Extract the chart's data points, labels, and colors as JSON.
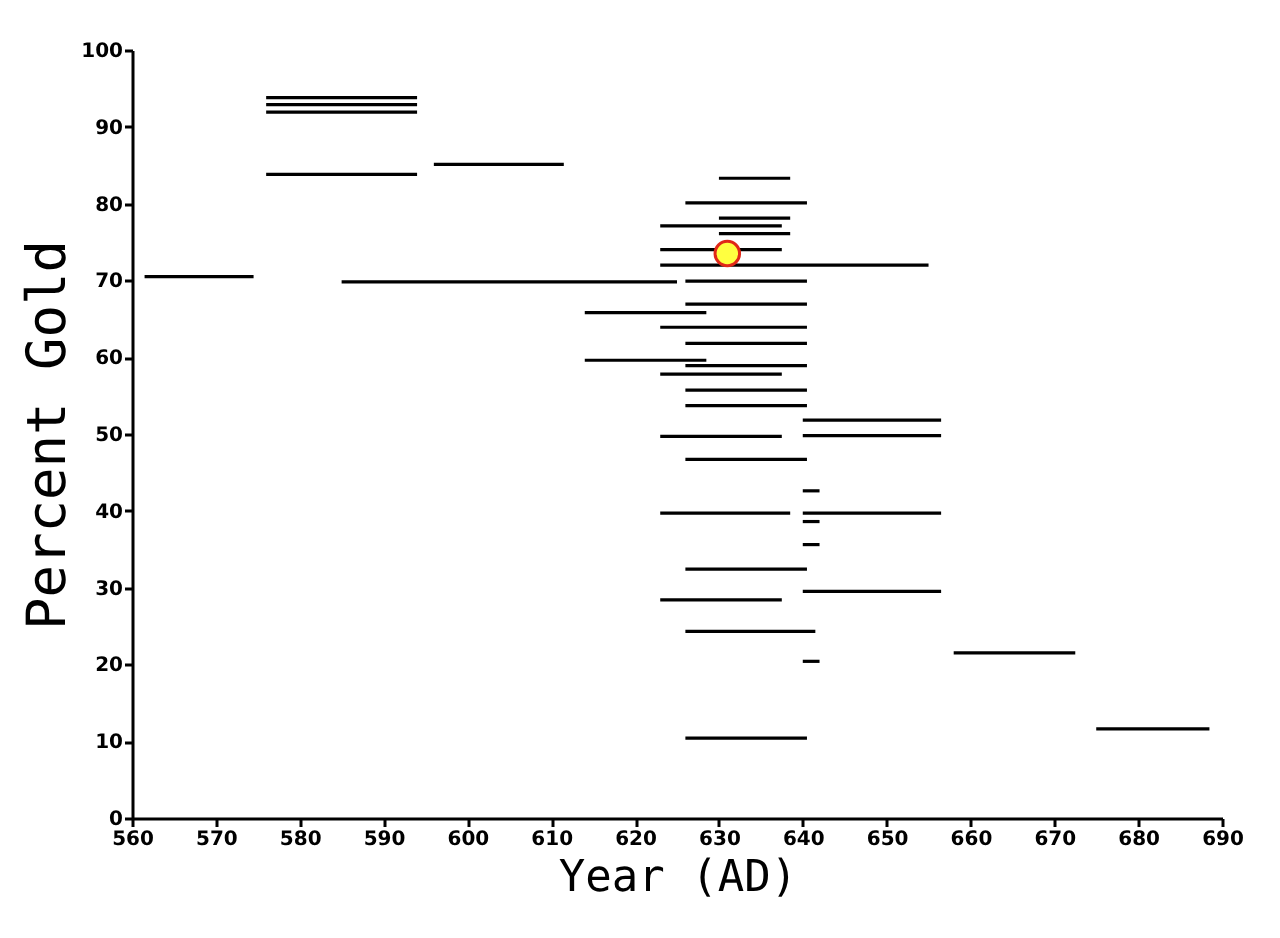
{
  "chart_data": {
    "type": "line",
    "xlabel": "Year (AD)",
    "ylabel": "Percent Gold",
    "xlim": [
      560,
      690
    ],
    "xticks": [
      560,
      570,
      580,
      590,
      600,
      610,
      620,
      630,
      640,
      650,
      660,
      670,
      680,
      690
    ],
    "ylim": [
      0,
      100
    ],
    "yticks": [
      0,
      10,
      20,
      30,
      40,
      50,
      60,
      70,
      80,
      90,
      100
    ],
    "grid": false,
    "series": [
      {
        "x": [
          561.5,
          574.5
        ],
        "values": [
          70.5,
          70.5
        ],
        "color": "#000000"
      },
      {
        "x": [
          576,
          594
        ],
        "values": [
          93.8,
          93.8
        ],
        "color": "#000000"
      },
      {
        "x": [
          576,
          594
        ],
        "values": [
          92.9,
          92.9
        ],
        "color": "#000000"
      },
      {
        "x": [
          576,
          594
        ],
        "values": [
          91.9,
          91.9
        ],
        "color": "#000000"
      },
      {
        "x": [
          576,
          594
        ],
        "values": [
          83.8,
          83.8
        ],
        "color": "#000000"
      },
      {
        "x": [
          596,
          611.5
        ],
        "values": [
          85.1,
          85.1
        ],
        "color": "#000000"
      },
      {
        "x": [
          585,
          625
        ],
        "values": [
          69.8,
          69.8
        ],
        "color": "#000000"
      },
      {
        "x": [
          614,
          628.5
        ],
        "values": [
          65.8,
          65.8
        ],
        "color": "#000000"
      },
      {
        "x": [
          614,
          628.5
        ],
        "values": [
          59.6,
          59.6
        ],
        "color": "#000000"
      },
      {
        "x": [
          630,
          638.5
        ],
        "values": [
          83.3,
          83.3
        ],
        "color": "#000000"
      },
      {
        "x": [
          626,
          640.5
        ],
        "values": [
          80.1,
          80.1
        ],
        "color": "#000000"
      },
      {
        "x": [
          630,
          638.5
        ],
        "values": [
          78.1,
          78.1
        ],
        "color": "#000000"
      },
      {
        "x": [
          623,
          637.5
        ],
        "values": [
          77.1,
          77.1
        ],
        "color": "#000000"
      },
      {
        "x": [
          630,
          638.5
        ],
        "values": [
          76.1,
          76.1
        ],
        "color": "#000000"
      },
      {
        "x": [
          623,
          637.5
        ],
        "values": [
          74.0,
          74.0
        ],
        "color": "#000000"
      },
      {
        "x": [
          623,
          655
        ],
        "values": [
          72.0,
          72.0
        ],
        "color": "#000000"
      },
      {
        "x": [
          626,
          640.5
        ],
        "values": [
          69.9,
          69.9
        ],
        "color": "#000000"
      },
      {
        "x": [
          626,
          640.5
        ],
        "values": [
          66.9,
          66.9
        ],
        "color": "#000000"
      },
      {
        "x": [
          623,
          640.5
        ],
        "values": [
          63.9,
          63.9
        ],
        "color": "#000000"
      },
      {
        "x": [
          626,
          640.5
        ],
        "values": [
          61.8,
          61.8
        ],
        "color": "#000000"
      },
      {
        "x": [
          626,
          640.5
        ],
        "values": [
          58.9,
          58.9
        ],
        "color": "#000000"
      },
      {
        "x": [
          623,
          637.5
        ],
        "values": [
          57.8,
          57.8
        ],
        "color": "#000000"
      },
      {
        "x": [
          626,
          640.5
        ],
        "values": [
          55.7,
          55.7
        ],
        "color": "#000000"
      },
      {
        "x": [
          626,
          640.5
        ],
        "values": [
          53.7,
          53.7
        ],
        "color": "#000000"
      },
      {
        "x": [
          640,
          656.5
        ],
        "values": [
          51.8,
          51.8
        ],
        "color": "#000000"
      },
      {
        "x": [
          623,
          637.5
        ],
        "values": [
          49.7,
          49.7
        ],
        "color": "#000000"
      },
      {
        "x": [
          640,
          656.5
        ],
        "values": [
          49.8,
          49.8
        ],
        "color": "#000000"
      },
      {
        "x": [
          626,
          640.5
        ],
        "values": [
          46.7,
          46.7
        ],
        "color": "#000000"
      },
      {
        "x": [
          640,
          642
        ],
        "values": [
          42.6,
          42.6
        ],
        "color": "#000000"
      },
      {
        "x": [
          623,
          638.5
        ],
        "values": [
          39.7,
          39.7
        ],
        "color": "#000000"
      },
      {
        "x": [
          640,
          656.5
        ],
        "values": [
          39.7,
          39.7
        ],
        "color": "#000000"
      },
      {
        "x": [
          640,
          642
        ],
        "values": [
          38.6,
          38.6
        ],
        "color": "#000000"
      },
      {
        "x": [
          640,
          642
        ],
        "values": [
          35.6,
          35.6
        ],
        "color": "#000000"
      },
      {
        "x": [
          626,
          640.5
        ],
        "values": [
          32.4,
          32.4
        ],
        "color": "#000000"
      },
      {
        "x": [
          640,
          656.5
        ],
        "values": [
          29.5,
          29.5
        ],
        "color": "#000000"
      },
      {
        "x": [
          623,
          637.5
        ],
        "values": [
          28.4,
          28.4
        ],
        "color": "#000000"
      },
      {
        "x": [
          626,
          641.5
        ],
        "values": [
          24.3,
          24.3
        ],
        "color": "#000000"
      },
      {
        "x": [
          640,
          642
        ],
        "values": [
          20.4,
          20.4
        ],
        "color": "#000000"
      },
      {
        "x": [
          658,
          672.5
        ],
        "values": [
          21.5,
          21.5
        ],
        "color": "#000000"
      },
      {
        "x": [
          675,
          688.5
        ],
        "values": [
          11.6,
          11.6
        ],
        "color": "#000000"
      },
      {
        "x": [
          626,
          640.5
        ],
        "values": [
          10.4,
          10.4
        ],
        "color": "#000000"
      },
      {
        "type": "scatter",
        "marker": "circle",
        "x": [
          631
        ],
        "values": [
          73.5
        ],
        "color": "#ffff40"
      }
    ]
  }
}
